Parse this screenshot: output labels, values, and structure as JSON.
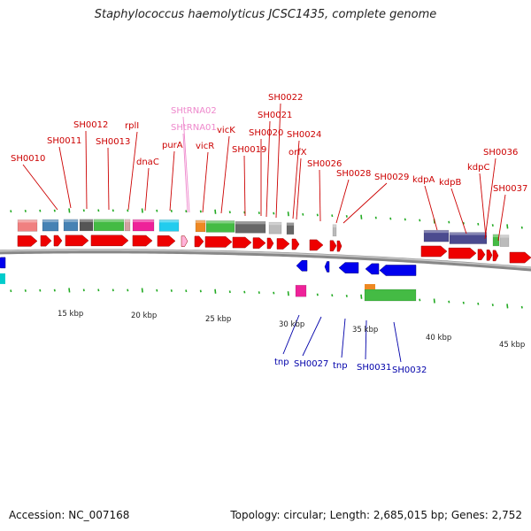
{
  "title": "Staphylococcus haemolyticus JCSC1435, complete genome",
  "accession": "Accession: NC_007168",
  "topology": "Topology: circular; Length: 2,685,015 bp; Genes: 2,752",
  "colors": {
    "backbone": "#888888",
    "forward_gene": "#ee0000",
    "reverse_gene": "#0000ee",
    "forward_label": "#cc0000",
    "reverse_label": "#0000aa",
    "rna_label": "#ee88cc",
    "tick": "#22aa22"
  },
  "ruler": [
    {
      "label": "15 kbp"
    },
    {
      "label": "20 kbp"
    },
    {
      "label": "25 kbp"
    },
    {
      "label": "30 kbp"
    },
    {
      "label": "35 kbp"
    },
    {
      "label": "40 kbp"
    },
    {
      "label": "45 kbp"
    }
  ],
  "forward_labels": [
    {
      "text": "SH0010",
      "color": "#cc0000"
    },
    {
      "text": "SH0011",
      "color": "#cc0000"
    },
    {
      "text": "SH0012",
      "color": "#cc0000"
    },
    {
      "text": "SH0013",
      "color": "#cc0000"
    },
    {
      "text": "rplI",
      "color": "#cc0000"
    },
    {
      "text": "dnaC",
      "color": "#cc0000"
    },
    {
      "text": "purA",
      "color": "#cc0000"
    },
    {
      "text": "SHtRNA02",
      "color": "#ee88cc"
    },
    {
      "text": "SHtRNA01",
      "color": "#ee88cc"
    },
    {
      "text": "vicR",
      "color": "#cc0000"
    },
    {
      "text": "vicK",
      "color": "#cc0000"
    },
    {
      "text": "SH0019",
      "color": "#cc0000"
    },
    {
      "text": "SH0020",
      "color": "#cc0000"
    },
    {
      "text": "SH0021",
      "color": "#cc0000"
    },
    {
      "text": "SH0022",
      "color": "#cc0000"
    },
    {
      "text": "SH0024",
      "color": "#cc0000"
    },
    {
      "text": "orfX",
      "color": "#cc0000"
    },
    {
      "text": "SH0026",
      "color": "#cc0000"
    },
    {
      "text": "SH0028",
      "color": "#cc0000"
    },
    {
      "text": "SH0029",
      "color": "#cc0000"
    },
    {
      "text": "kdpA",
      "color": "#cc0000"
    },
    {
      "text": "kdpB",
      "color": "#cc0000"
    },
    {
      "text": "kdpC",
      "color": "#cc0000"
    },
    {
      "text": "SH0036",
      "color": "#cc0000"
    },
    {
      "text": "SH0037",
      "color": "#cc0000"
    }
  ],
  "reverse_labels": [
    {
      "text": "tnp"
    },
    {
      "text": "SH0027"
    },
    {
      "text": "tnp"
    },
    {
      "text": "SH0031"
    },
    {
      "text": "SH0032"
    }
  ]
}
